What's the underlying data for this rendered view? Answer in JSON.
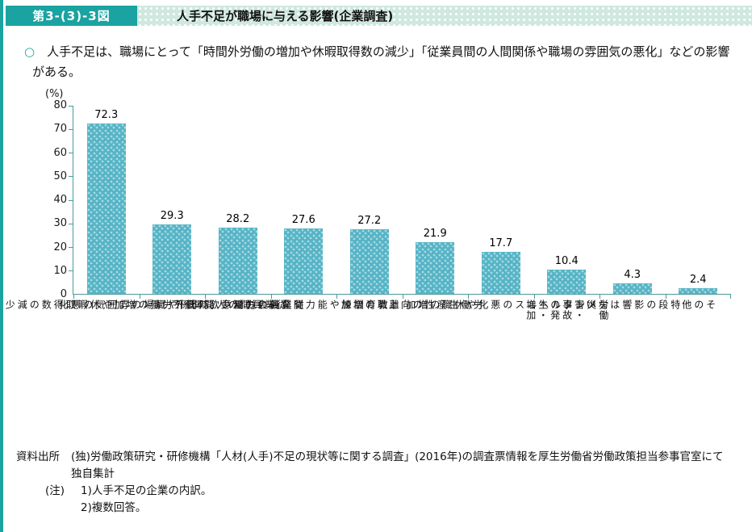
{
  "colors": {
    "accent_teal": "#1aa3a0",
    "strip_bg": "#cfe8e0",
    "bar_fill": "#55b4c6",
    "axis": "#4b9a99"
  },
  "header": {
    "figure_label": "第3-(3)-3図",
    "title": "人手不足が職場に与える影響(企業調査)"
  },
  "summary": {
    "bullet_mark": "○",
    "text": "人手不足は、職場にとって「時間外労働の増加や休暇取得数の減少」「従業員間の人間関係や職場の雰囲気の悪化」などの影響がある。"
  },
  "chart_data": {
    "type": "bar",
    "title": "人手不足が職場に与える影響(企業調査)",
    "xlabel": "",
    "ylabel": "(%)",
    "ylim": [
      0,
      80
    ],
    "yticks": [
      0,
      10,
      20,
      30,
      40,
      50,
      60,
      70,
      80
    ],
    "grid": false,
    "legend": false,
    "categories": [
      "時間外労働の増加や休暇取得数の減少",
      "従業員間の人間関係や職場の雰囲気の悪化",
      "従業員の労働意欲の低下",
      "教育訓練や能力開発機会の減少",
      "離職の増加",
      "労働生産性の向上",
      "メンタルヘルスの悪化や休職の増加",
      "労働災害・事故の発生・増加",
      "特段の影響はない",
      "その他"
    ],
    "values": [
      72.3,
      29.3,
      28.2,
      27.6,
      27.2,
      21.9,
      17.7,
      10.4,
      4.3,
      2.4
    ]
  },
  "footer": {
    "source_label": "資料出所",
    "source_text": "(独)労働政策研究・研修機構「人材(人手)不足の現状等に関する調査」(2016年)の調査票情報を厚生労働省労働政策担当参事官室にて独自集計",
    "note_label": "(注)",
    "notes": [
      "1)人手不足の企業の内訳。",
      "2)複数回答。"
    ]
  }
}
